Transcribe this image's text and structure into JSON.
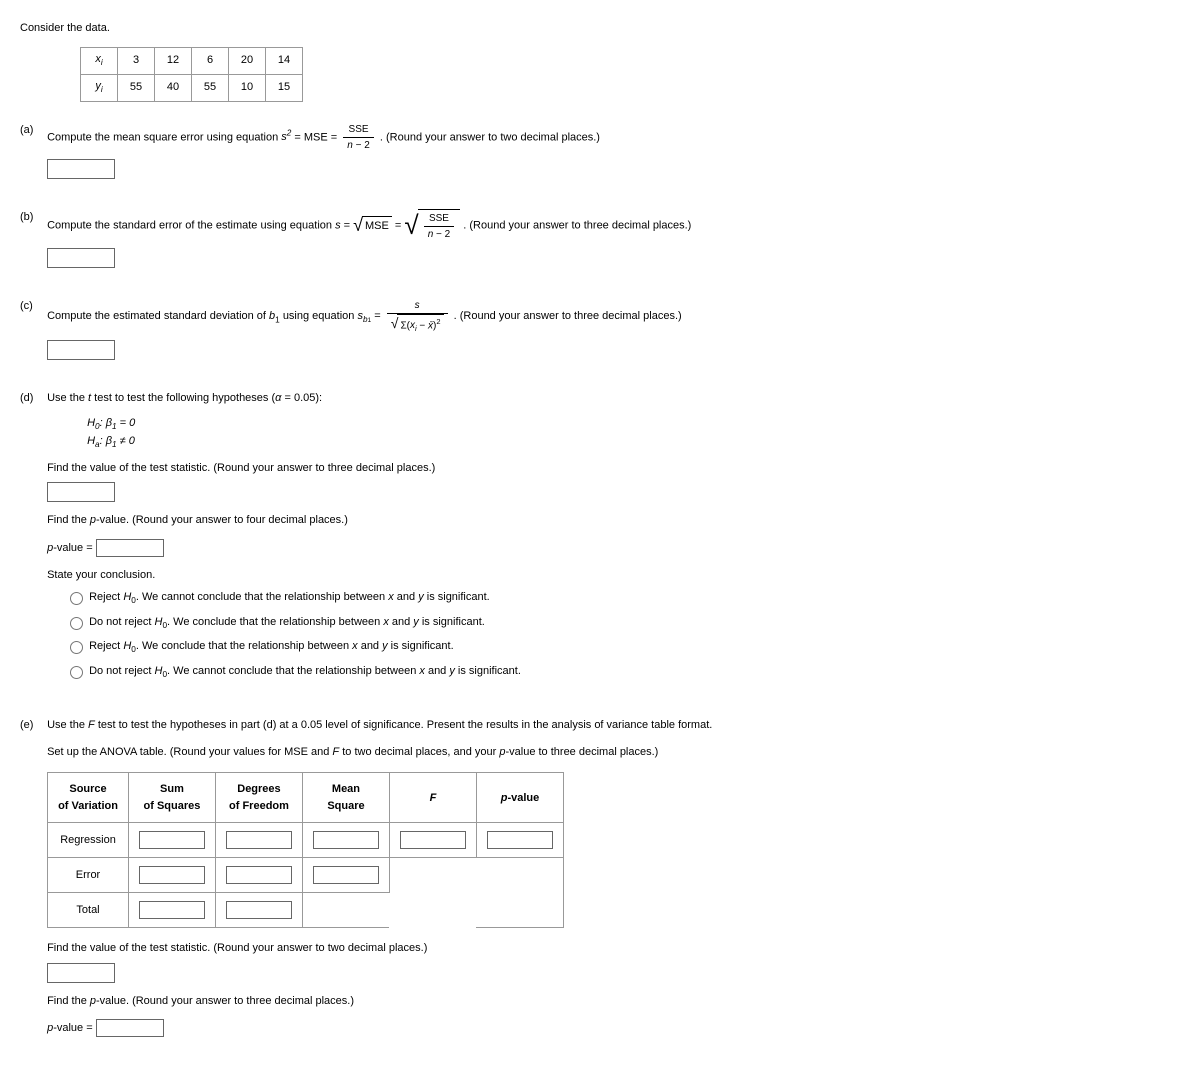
{
  "intro": "Consider the data.",
  "data_table": {
    "row_headers": [
      "xᵢ",
      "yᵢ"
    ],
    "rows": [
      [
        3,
        12,
        6,
        20,
        14
      ],
      [
        55,
        40,
        55,
        10,
        15
      ]
    ]
  },
  "parts": {
    "a": {
      "label": "(a)",
      "pre": "Compute the mean square error using equation ",
      "eq_lhs_html": "s<span class='sup'>2</span> = MSE =",
      "frac_num": "SSE",
      "frac_den": "n − 2",
      "post": ". (Round your answer to two decimal places.)"
    },
    "b": {
      "label": "(b)",
      "pre": "Compute the standard error of the estimate using equation ",
      "eq_lhs": "s =",
      "sqrt_inner": "MSE",
      "eq_mid": " =",
      "frac_num": "SSE",
      "frac_den": "n − 2",
      "post": ". (Round your answer to three decimal places.)"
    },
    "c": {
      "label": "(c)",
      "pre": "Compute the estimated standard deviation of ",
      "var": "b",
      "var_sub": "1",
      "mid": " using equation ",
      "eq_lhs": "s",
      "eq_lhs_sub": "b₁",
      "eq_mid": " =",
      "frac_num": "s",
      "frac_den_inner": "Σ(xᵢ − x̄)²",
      "post": ". (Round your answer to three decimal places.)"
    },
    "d": {
      "label": "(d)",
      "intro": "Use the t test to test the following hypotheses (α = 0.05):",
      "h0": "H₀: β₁ = 0",
      "ha": "Hₐ: β₁ ≠ 0",
      "ts_prompt": "Find the value of the test statistic. (Round your answer to three decimal places.)",
      "pv_prompt": "Find the p-value. (Round your answer to four decimal places.)",
      "pv_label": "p-value =",
      "conc_prompt": "State your conclusion.",
      "options": [
        "Reject H₀. We cannot conclude that the relationship between x and y is significant.",
        "Do not reject H₀. We conclude that the relationship between x and y is significant.",
        "Reject H₀. We conclude that the relationship between x and y is significant.",
        "Do not reject H₀. We cannot conclude that the relationship between x and y is significant."
      ]
    },
    "e": {
      "label": "(e)",
      "intro1": "Use the F test to test the hypotheses in part (d) at a 0.05 level of significance. Present the results in the analysis of variance table format.",
      "intro2": "Set up the ANOVA table. (Round your values for MSE and F to two decimal places, and your p-value to three decimal places.)",
      "headers": [
        "Source\nof Variation",
        "Sum\nof Squares",
        "Degrees\nof Freedom",
        "Mean\nSquare",
        "F",
        "p-value"
      ],
      "rows": [
        "Regression",
        "Error",
        "Total"
      ],
      "ts_prompt": "Find the value of the test statistic. (Round your answer to two decimal places.)",
      "pv_prompt": "Find the p-value. (Round your answer to three decimal places.)",
      "pv_label": "p-value ="
    }
  }
}
